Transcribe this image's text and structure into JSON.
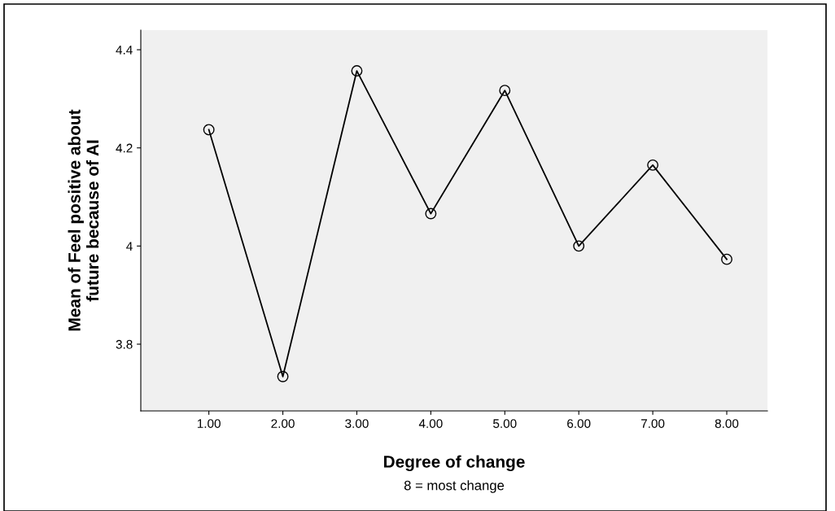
{
  "chart_data": {
    "type": "line",
    "x": [
      1,
      2,
      3,
      4,
      5,
      6,
      7,
      8
    ],
    "series": [
      {
        "color": "#000000",
        "values": [
          4.237,
          3.734,
          4.357,
          4.066,
          4.317,
          4.0,
          4.165,
          3.973
        ]
      }
    ],
    "xlabel": "Degree of change",
    "ylabel": "Mean of Feel positive about\nfuture because of AI",
    "annotations": [
      "8 = most change"
    ],
    "xlim": [
      0.08,
      8.55
    ],
    "ylim": [
      3.664,
      4.44
    ],
    "xticks": [
      {
        "value": 1,
        "label": "1.00"
      },
      {
        "value": 2,
        "label": "2.00"
      },
      {
        "value": 3,
        "label": "3.00"
      },
      {
        "value": 4,
        "label": "4.00"
      },
      {
        "value": 5,
        "label": "5.00"
      },
      {
        "value": 6,
        "label": "6.00"
      },
      {
        "value": 7,
        "label": "7.00"
      },
      {
        "value": 8,
        "label": "8.00"
      }
    ],
    "yticks": [
      3.8,
      4,
      4.2,
      4.4
    ],
    "marker": "circle",
    "line_style": "solid",
    "grid": false,
    "legend": false
  }
}
